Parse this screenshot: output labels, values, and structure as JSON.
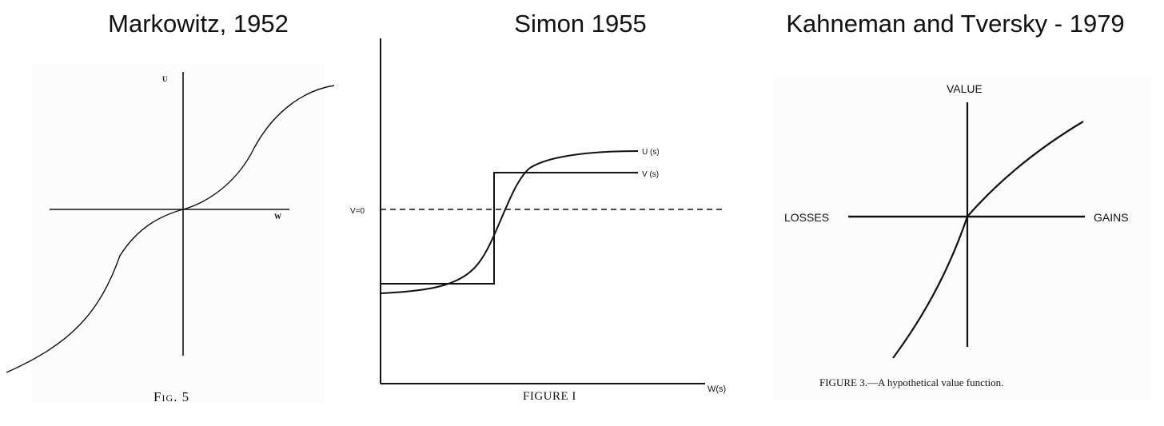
{
  "titles": {
    "markowitz": "Markowitz, 1952",
    "simon": "Simon 1955",
    "kt": "Kahneman and Tversky - 1979"
  },
  "markowitz": {
    "y_label": "U",
    "x_label": "W",
    "caption": "Fig. 5"
  },
  "simon": {
    "u_label": "U (s)",
    "v_label": "V (s)",
    "dashed_label": "V=0",
    "x_label": "W(s)",
    "caption": "FIGURE I"
  },
  "kt": {
    "y_label": "VALUE",
    "left_label": "LOSSES",
    "right_label": "GAINS",
    "caption": "FIGURE 3.—A hypothetical value function."
  },
  "colors": {
    "ink": "#111111",
    "panel_bg": "#fcfcfc"
  }
}
